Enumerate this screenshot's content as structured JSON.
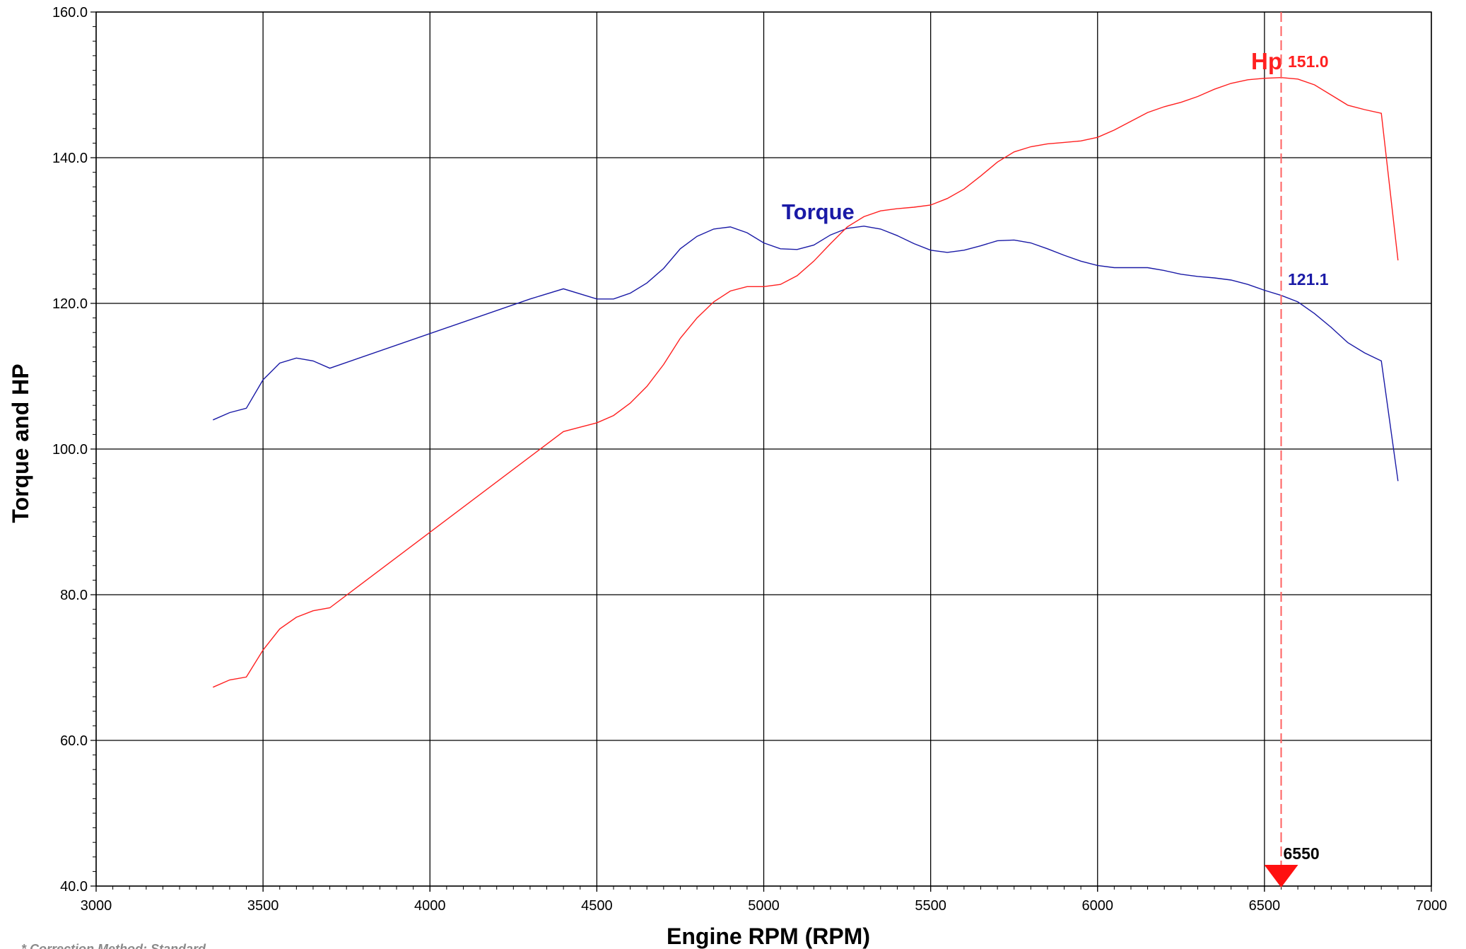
{
  "colors": {
    "torque": "#1a1aa6",
    "hp": "#ff2020",
    "cursor": "#ff6060",
    "grid": "#000000",
    "footnote": "#8a8a8a"
  },
  "chart_data": {
    "type": "line",
    "title": "",
    "xlabel": "Engine RPM (RPM)",
    "ylabel": "Torque and HP",
    "xlim": [
      3000,
      7000
    ],
    "ylim": [
      40,
      160
    ],
    "grid": true,
    "x_ticks": [
      "3000",
      "3500",
      "4000",
      "4500",
      "5000",
      "5500",
      "6000",
      "6500",
      "7000"
    ],
    "y_ticks": [
      "40.0",
      "60.0",
      "80.0",
      "100.0",
      "120.0",
      "140.0",
      "160.0"
    ],
    "series": [
      {
        "name": "Torque",
        "color": "#1a1aa6",
        "points": [
          [
            3350,
            104.0
          ],
          [
            3400,
            105.0
          ],
          [
            3450,
            105.6
          ],
          [
            3500,
            109.5
          ],
          [
            3550,
            111.8
          ],
          [
            3600,
            112.5
          ],
          [
            3650,
            112.1
          ],
          [
            3700,
            111.1
          ],
          [
            4300,
            120.6
          ],
          [
            4400,
            122.0
          ],
          [
            4500,
            120.6
          ],
          [
            4550,
            120.6
          ],
          [
            4600,
            121.4
          ],
          [
            4650,
            122.8
          ],
          [
            4700,
            124.8
          ],
          [
            4750,
            127.5
          ],
          [
            4800,
            129.2
          ],
          [
            4850,
            130.2
          ],
          [
            4900,
            130.5
          ],
          [
            4950,
            129.7
          ],
          [
            5000,
            128.3
          ],
          [
            5050,
            127.5
          ],
          [
            5100,
            127.4
          ],
          [
            5150,
            128.0
          ],
          [
            5200,
            129.4
          ],
          [
            5250,
            130.3
          ],
          [
            5300,
            130.6
          ],
          [
            5350,
            130.2
          ],
          [
            5400,
            129.3
          ],
          [
            5450,
            128.2
          ],
          [
            5500,
            127.3
          ],
          [
            5550,
            127.0
          ],
          [
            5600,
            127.3
          ],
          [
            5650,
            127.9
          ],
          [
            5700,
            128.6
          ],
          [
            5750,
            128.7
          ],
          [
            5800,
            128.3
          ],
          [
            5850,
            127.5
          ],
          [
            5900,
            126.6
          ],
          [
            5950,
            125.8
          ],
          [
            6000,
            125.2
          ],
          [
            6050,
            124.9
          ],
          [
            6100,
            124.9
          ],
          [
            6150,
            124.9
          ],
          [
            6200,
            124.5
          ],
          [
            6250,
            124.0
          ],
          [
            6300,
            123.7
          ],
          [
            6350,
            123.5
          ],
          [
            6400,
            123.2
          ],
          [
            6450,
            122.6
          ],
          [
            6500,
            121.8
          ],
          [
            6550,
            121.1
          ],
          [
            6600,
            120.2
          ],
          [
            6650,
            118.6
          ],
          [
            6700,
            116.7
          ],
          [
            6750,
            114.6
          ],
          [
            6800,
            113.2
          ],
          [
            6850,
            112.1
          ],
          [
            6900,
            95.6
          ]
        ]
      },
      {
        "name": "Hp",
        "color": "#ff2020",
        "points": [
          [
            3350,
            67.3
          ],
          [
            3400,
            68.3
          ],
          [
            3450,
            68.7
          ],
          [
            3500,
            72.4
          ],
          [
            3550,
            75.3
          ],
          [
            3600,
            76.9
          ],
          [
            3650,
            77.8
          ],
          [
            3700,
            78.2
          ],
          [
            4400,
            102.4
          ],
          [
            4450,
            103.0
          ],
          [
            4500,
            103.6
          ],
          [
            4550,
            104.6
          ],
          [
            4600,
            106.3
          ],
          [
            4650,
            108.6
          ],
          [
            4700,
            111.6
          ],
          [
            4750,
            115.2
          ],
          [
            4800,
            118.0
          ],
          [
            4850,
            120.2
          ],
          [
            4900,
            121.7
          ],
          [
            4950,
            122.3
          ],
          [
            5000,
            122.3
          ],
          [
            5050,
            122.6
          ],
          [
            5100,
            123.8
          ],
          [
            5150,
            125.8
          ],
          [
            5200,
            128.2
          ],
          [
            5250,
            130.5
          ],
          [
            5300,
            131.9
          ],
          [
            5350,
            132.7
          ],
          [
            5400,
            133.0
          ],
          [
            5450,
            133.2
          ],
          [
            5500,
            133.5
          ],
          [
            5550,
            134.4
          ],
          [
            5600,
            135.7
          ],
          [
            5650,
            137.5
          ],
          [
            5700,
            139.4
          ],
          [
            5750,
            140.8
          ],
          [
            5800,
            141.5
          ],
          [
            5850,
            141.9
          ],
          [
            5900,
            142.1
          ],
          [
            5950,
            142.3
          ],
          [
            6000,
            142.8
          ],
          [
            6050,
            143.8
          ],
          [
            6100,
            145.0
          ],
          [
            6150,
            146.2
          ],
          [
            6200,
            147.0
          ],
          [
            6250,
            147.6
          ],
          [
            6300,
            148.4
          ],
          [
            6350,
            149.4
          ],
          [
            6400,
            150.2
          ],
          [
            6450,
            150.7
          ],
          [
            6500,
            150.9
          ],
          [
            6550,
            151.0
          ],
          [
            6600,
            150.8
          ],
          [
            6650,
            150.0
          ],
          [
            6700,
            148.6
          ],
          [
            6750,
            147.2
          ],
          [
            6800,
            146.6
          ],
          [
            6850,
            146.1
          ],
          [
            6900,
            125.9
          ]
        ]
      }
    ],
    "annotations": {
      "torque_label": "Torque",
      "hp_label": "Hp",
      "hp_value_label": "151.0",
      "torque_value_label": "121.1",
      "cursor_rpm": 6550,
      "cursor_label": "6550"
    }
  },
  "footnote": "* Correction Method: Standard"
}
